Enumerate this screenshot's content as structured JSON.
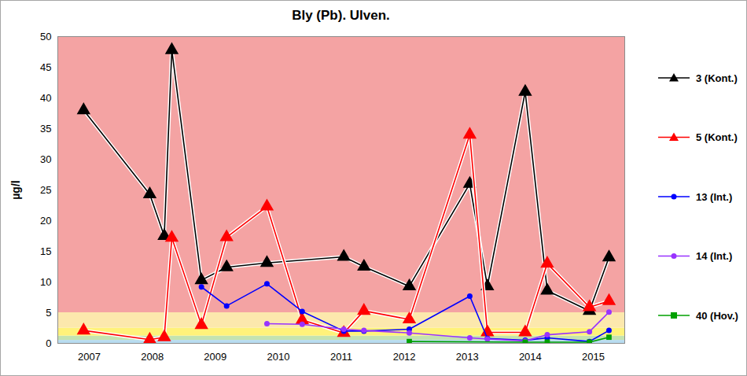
{
  "chart_data": {
    "type": "line",
    "title": "Bly (Pb). Ulven.",
    "y_label": "µg/l",
    "xlim": [
      2007,
      2016
    ],
    "xticks": [
      {
        "value": 2007.5,
        "label": "2007"
      },
      {
        "value": 2008.5,
        "label": "2008"
      },
      {
        "value": 2009.5,
        "label": "2009"
      },
      {
        "value": 2010.5,
        "label": "2010"
      },
      {
        "value": 2011.5,
        "label": "2011"
      },
      {
        "value": 2012.5,
        "label": "2012"
      },
      {
        "value": 2013.5,
        "label": "2013"
      },
      {
        "value": 2014.5,
        "label": "2014"
      },
      {
        "value": 2015.5,
        "label": "2015"
      }
    ],
    "ylim": [
      0,
      50
    ],
    "yticks": [
      0,
      5,
      10,
      15,
      20,
      25,
      30,
      35,
      40,
      45,
      50
    ],
    "grid": false,
    "legend": "right",
    "bands": [
      {
        "from": 0,
        "to": 0.5,
        "color": "#b8dcf0"
      },
      {
        "from": 0.5,
        "to": 1.2,
        "color": "#c4e3b0"
      },
      {
        "from": 1.2,
        "to": 2.5,
        "color": "#fff27a"
      },
      {
        "from": 2.5,
        "to": 5,
        "color": "#fce8ad"
      },
      {
        "from": 5,
        "to": 50,
        "color": "#f4a3a3"
      }
    ],
    "series": [
      {
        "name": "3 (Kont.)",
        "color": "#000000",
        "marker": "triangle",
        "x": [
          2007.41,
          2008.46,
          2008.69,
          2008.81,
          2009.28,
          2009.68,
          2010.32,
          2011.54,
          2011.86,
          2012.58,
          2013.54,
          2013.82,
          2014.42,
          2014.77,
          2015.44,
          2015.75
        ],
        "values": [
          38,
          24.3,
          17.5,
          47.8,
          10.3,
          12.4,
          13.1,
          14.1,
          12.5,
          9.3,
          26,
          9.3,
          41,
          8.6,
          5.3,
          14
        ]
      },
      {
        "name": "5 (Kont.)",
        "color": "#ff0000",
        "marker": "triangle",
        "x": [
          2007.41,
          2008.46,
          2008.69,
          2008.81,
          2009.28,
          2009.68,
          2010.32,
          2010.88,
          2011.54,
          2011.86,
          2012.58,
          2013.54,
          2013.82,
          2014.42,
          2014.77,
          2015.44,
          2015.75
        ],
        "values": [
          2.1,
          0.6,
          1.0,
          17.2,
          3.0,
          17.3,
          22.3,
          3.8,
          1.7,
          5.3,
          3.9,
          34,
          1.8,
          1.8,
          13,
          5.9,
          6.9
        ]
      },
      {
        "name": "13 (Int.)",
        "color": "#0000ff",
        "marker": "circle",
        "x": [
          2009.28,
          2009.68,
          2010.32,
          2010.88,
          2011.54,
          2011.86,
          2012.58,
          2013.54,
          2013.82,
          2014.42,
          2014.77,
          2015.44,
          2015.75
        ],
        "values": [
          9.2,
          6.1,
          9.7,
          5.2,
          2.0,
          2.0,
          2.3,
          7.7,
          0.8,
          0.5,
          0.9,
          0.3,
          2.1
        ]
      },
      {
        "name": "14 (Int.)",
        "color": "#9933ff",
        "marker": "circle",
        "x": [
          2010.32,
          2010.88,
          2011.54,
          2011.86,
          2012.58,
          2013.54,
          2013.82,
          2014.42,
          2014.77,
          2015.44,
          2015.75
        ],
        "values": [
          3.2,
          3.1,
          2.3,
          2.1,
          1.7,
          0.9,
          0.7,
          0.4,
          1.4,
          1.9,
          5.1
        ]
      },
      {
        "name": "40 (Hov.)",
        "color": "#00a000",
        "marker": "square",
        "x": [
          2012.58,
          2014.42,
          2014.77,
          2015.44,
          2015.75
        ],
        "values": [
          0.3,
          0.2,
          0.2,
          0.2,
          1.0
        ]
      }
    ]
  }
}
